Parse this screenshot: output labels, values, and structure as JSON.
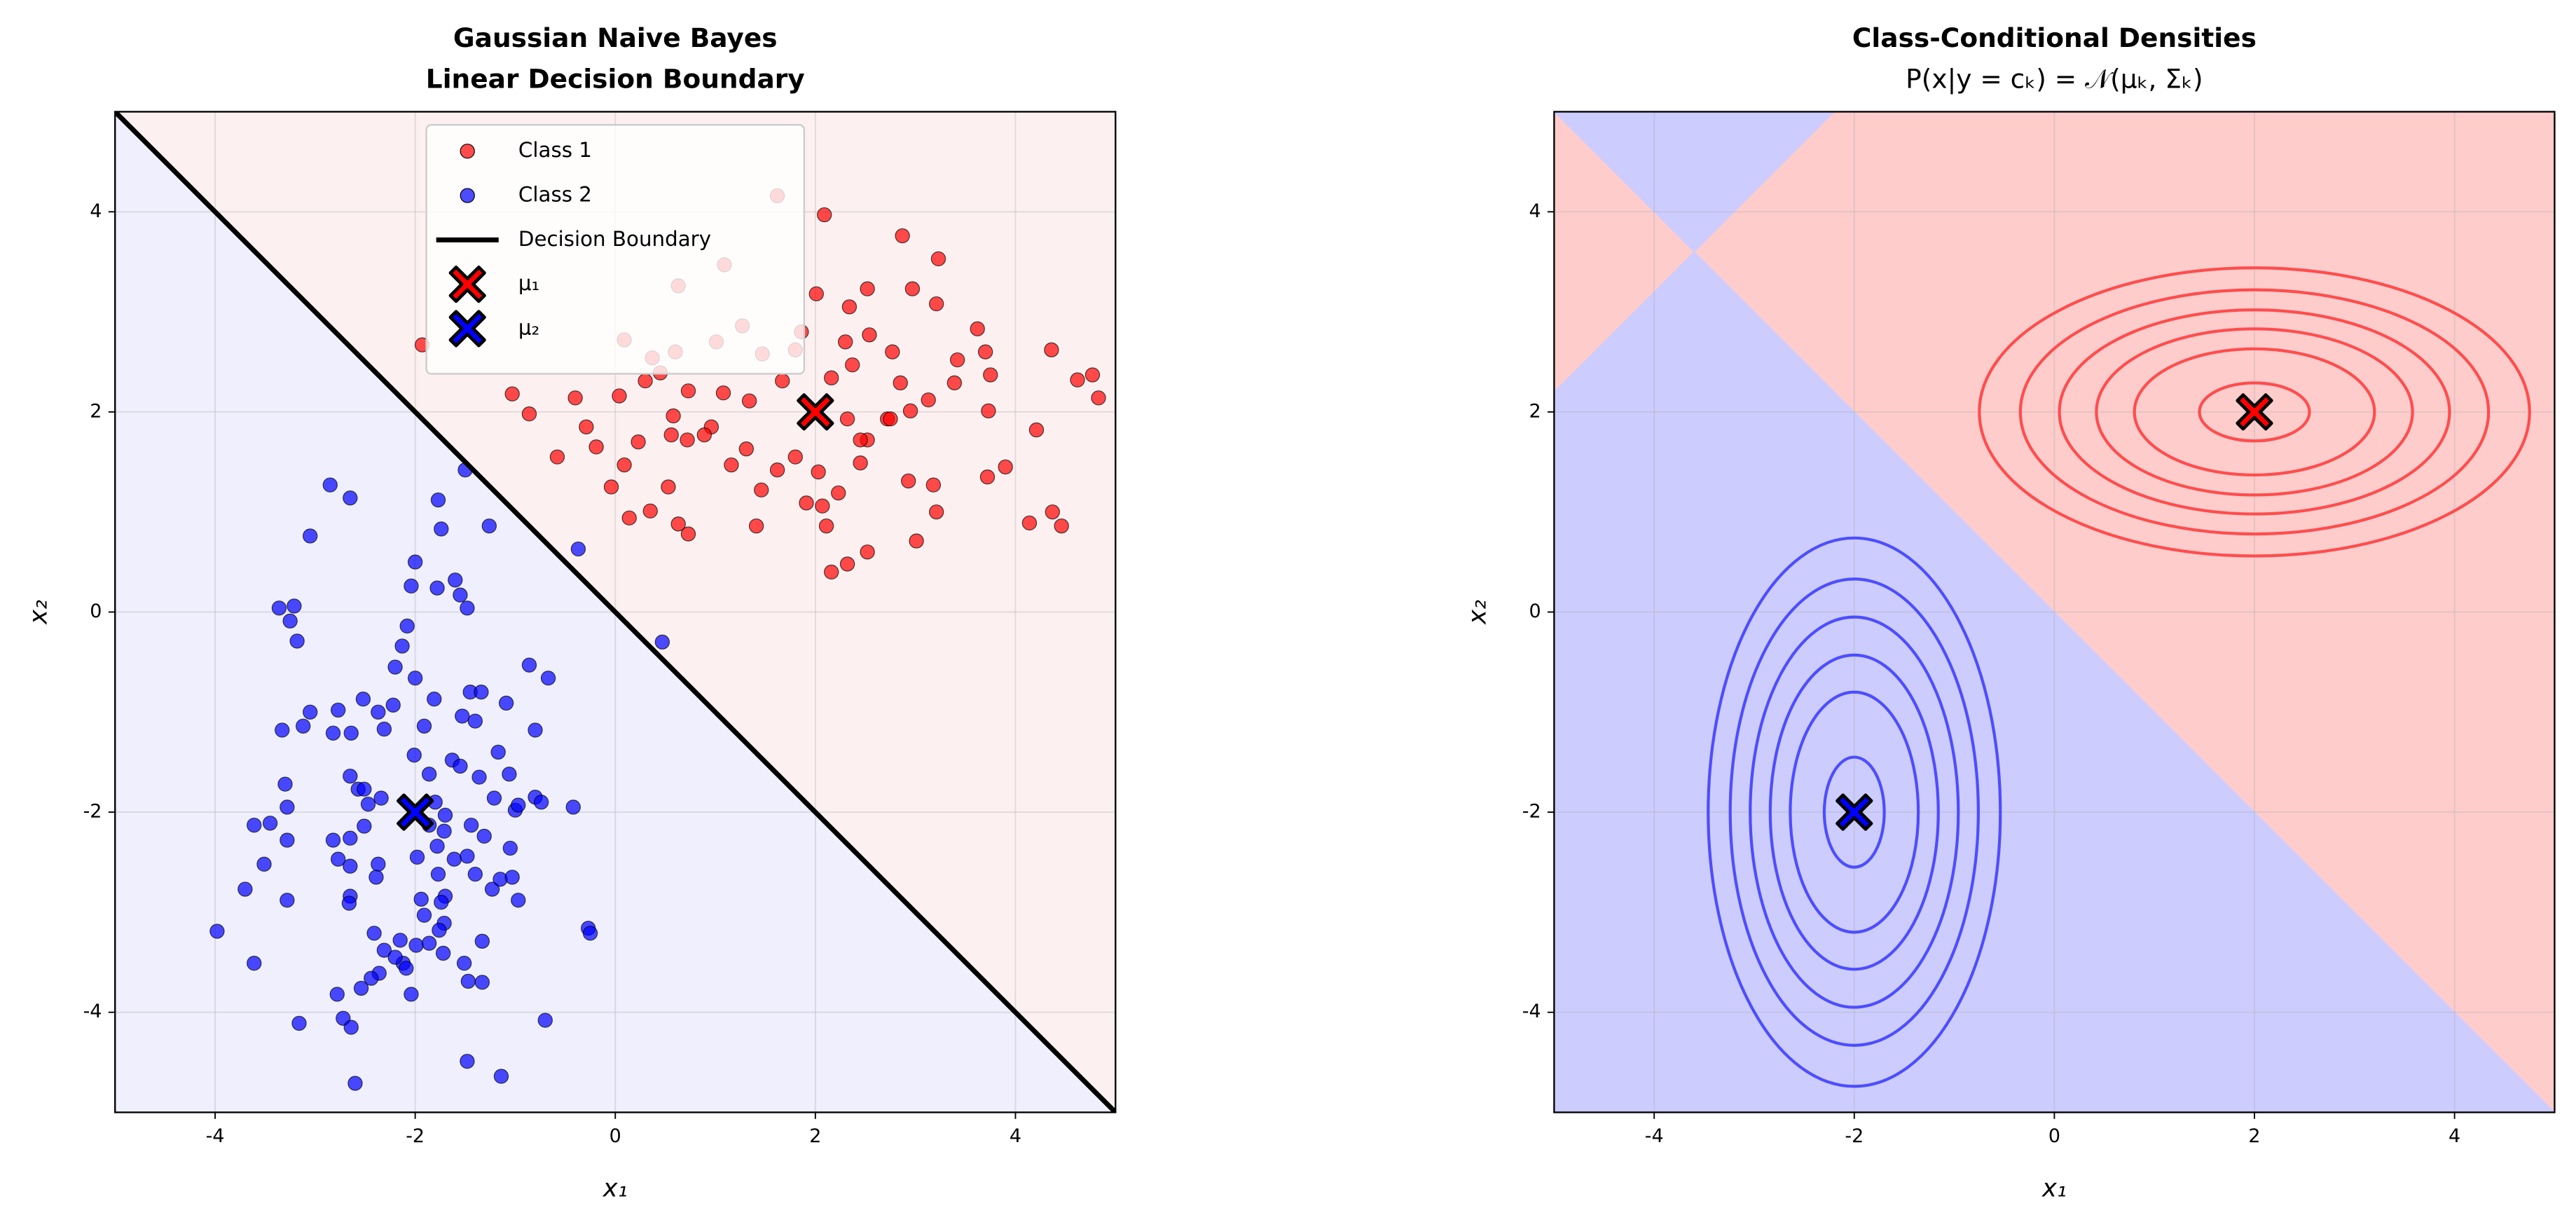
{
  "chart_data": [
    {
      "type": "scatter",
      "title": "Gaussian Naive Bayes",
      "subtitle": "Linear Decision Boundary",
      "xlabel": "x₁",
      "ylabel": "x₂",
      "xlim": [
        -5,
        5
      ],
      "ylim": [
        -5,
        5
      ],
      "xticks": [
        -4,
        -2,
        0,
        2,
        4
      ],
      "yticks": [
        -4,
        -2,
        0,
        2,
        4
      ],
      "grid": true,
      "legend": "upper center",
      "regions": [
        {
          "color": "#fdf0f0",
          "x": [
            -5,
            5,
            5
          ],
          "y": [
            5,
            5,
            -5
          ]
        },
        {
          "color": "#efeffd",
          "x": [
            -5,
            5,
            -5
          ],
          "y": [
            5,
            -5,
            -5
          ]
        }
      ],
      "series": [
        {
          "name": "Class 1",
          "color": "#ff0000",
          "x": [
            2.09,
            2.87,
            3.23,
            1.62,
            0.63,
            1.09,
            2.01,
            2.34,
            2.52,
            2.97,
            3.62,
            3.42,
            3.21,
            3.7,
            4.36,
            4.77,
            4.83,
            4.62,
            3.73,
            4.21,
            3.9,
            3.72,
            4.14,
            4.37,
            4.46,
            3.18,
            3.21,
            3.01,
            2.93,
            2.72,
            2.52,
            2.45,
            2.23,
            2.07,
            2.11,
            2.32,
            2.16,
            2.52,
            1.91,
            1.41,
            1.62,
            1.31,
            1.46,
            0.96,
            0.72,
            0.73,
            0.63,
            0.14,
            0.35,
            0.53,
            -0.04,
            0.09,
            -0.19,
            -0.29,
            -0.58,
            -0.86,
            -1.03,
            -0.4,
            0.04,
            0.3,
            0.45,
            0.73,
            1.08,
            1.34,
            1.67,
            1.47,
            1.8,
            2.16,
            2.37,
            2.54,
            2.77,
            2.85,
            2.95,
            3.13,
            3.39,
            3.75,
            0.09,
            0.6,
            1.01,
            1.27,
            1.86,
            2.3,
            2.75,
            2.45,
            2.32,
            0.89,
            1.16,
            1.8,
            2.03,
            0.56,
            0.23,
            0.58,
            0.37,
            -1.93
          ],
          "y": [
            3.97,
            3.76,
            3.53,
            4.16,
            3.26,
            3.47,
            3.18,
            3.05,
            3.23,
            3.23,
            2.83,
            2.52,
            3.08,
            2.6,
            2.62,
            2.37,
            2.14,
            2.32,
            2.01,
            1.82,
            1.45,
            1.35,
            0.89,
            1.0,
            0.86,
            1.27,
            1.0,
            0.71,
            1.31,
            1.93,
            1.72,
            1.49,
            1.19,
            1.06,
            0.86,
            0.48,
            0.4,
            0.6,
            1.09,
            0.86,
            1.42,
            1.63,
            1.22,
            1.85,
            1.72,
            0.78,
            0.88,
            0.94,
            1.01,
            1.25,
            1.25,
            1.47,
            1.65,
            1.85,
            1.55,
            1.98,
            2.18,
            2.14,
            2.16,
            2.31,
            2.39,
            2.21,
            2.19,
            2.11,
            2.31,
            2.58,
            2.62,
            2.34,
            2.47,
            2.77,
            2.6,
            2.29,
            2.01,
            2.12,
            2.29,
            2.37,
            2.72,
            2.6,
            2.7,
            2.86,
            2.8,
            2.7,
            1.93,
            1.72,
            1.93,
            1.77,
            1.47,
            1.55,
            1.4,
            1.77,
            1.7,
            1.96,
            2.54,
            2.67
          ]
        },
        {
          "name": "Class 2",
          "color": "#0000ff",
          "x": [
            -2.85,
            -2.65,
            -3.05,
            -1.77,
            -1.74,
            -1.5,
            -1.26,
            -2.0,
            -2.04,
            -1.6,
            -1.55,
            -1.48,
            -1.78,
            -3.36,
            -3.21,
            -3.25,
            -3.18,
            -2.08,
            -2.13,
            -2.2,
            -2.0,
            -0.86,
            -0.67,
            -1.45,
            -1.34,
            -1.81,
            -2.52,
            -2.37,
            -2.22,
            -3.05,
            -3.33,
            -3.12,
            -2.77,
            -1.53,
            -1.4,
            -1.09,
            -1.91,
            -0.8,
            -2.82,
            -2.64,
            -2.31,
            -2.01,
            -1.63,
            -1.55,
            -1.17,
            -1.06,
            -1.86,
            -2.65,
            -2.57,
            -3.3,
            -3.28,
            -3.61,
            -3.45,
            -2.47,
            -2.51,
            -2.34,
            -1.8,
            -1.7,
            -1.21,
            -1.0,
            -0.8,
            -0.74,
            -0.97,
            -0.42,
            -1.36,
            -1.44,
            -1.86,
            -1.71,
            -2.51,
            -2.65,
            -2.82,
            -3.28,
            -3.51,
            -2.77,
            -2.65,
            -2.37,
            -1.98,
            -1.78,
            -1.61,
            -1.48,
            -1.31,
            -1.05,
            -1.4,
            -1.77,
            -1.23,
            -1.15,
            -1.03,
            -0.97,
            -1.7,
            -1.74,
            -1.94,
            -2.39,
            -2.65,
            -2.66,
            -3.28,
            -3.7,
            -1.91,
            -1.71,
            -1.76,
            -2.41,
            -2.15,
            -1.99,
            -1.86,
            -1.72,
            -1.51,
            -1.33,
            -2.12,
            -2.31,
            -2.2,
            -2.36,
            -2.09,
            -2.44,
            -0.27,
            -0.25,
            -3.98,
            -3.61,
            -1.47,
            -1.33,
            -2.78,
            -2.54,
            -2.04,
            -0.7,
            -2.72,
            -2.64,
            -3.16,
            -1.48,
            -1.14,
            -2.6,
            -0.37,
            0.47
          ],
          "y": [
            1.27,
            1.14,
            0.76,
            1.12,
            0.83,
            1.42,
            0.86,
            0.5,
            0.26,
            0.32,
            0.17,
            0.04,
            0.24,
            0.04,
            0.06,
            -0.09,
            -0.29,
            -0.14,
            -0.34,
            -0.55,
            -0.66,
            -0.53,
            -0.66,
            -0.8,
            -0.8,
            -0.87,
            -0.87,
            -1.0,
            -0.93,
            -1.0,
            -1.18,
            -1.14,
            -0.98,
            -1.04,
            -1.09,
            -0.91,
            -1.14,
            -1.18,
            -1.21,
            -1.21,
            -1.17,
            -1.43,
            -1.48,
            -1.54,
            -1.4,
            -1.62,
            -1.62,
            -1.64,
            -1.77,
            -1.72,
            -1.95,
            -2.13,
            -2.11,
            -1.92,
            -1.77,
            -1.86,
            -1.9,
            -2.03,
            -1.86,
            -1.98,
            -1.85,
            -1.9,
            -1.93,
            -1.95,
            -1.65,
            -2.13,
            -2.13,
            -2.19,
            -2.14,
            -2.26,
            -2.28,
            -2.28,
            -2.52,
            -2.47,
            -2.54,
            -2.52,
            -2.45,
            -2.34,
            -2.47,
            -2.44,
            -2.24,
            -2.36,
            -2.62,
            -2.62,
            -2.77,
            -2.67,
            -2.65,
            -2.88,
            -2.84,
            -2.9,
            -2.87,
            -2.65,
            -2.84,
            -2.91,
            -2.88,
            -2.77,
            -3.03,
            -3.11,
            -3.18,
            -3.21,
            -3.28,
            -3.33,
            -3.31,
            -3.41,
            -3.51,
            -3.29,
            -3.51,
            -3.38,
            -3.45,
            -3.61,
            -3.56,
            -3.66,
            -3.16,
            -3.21,
            -3.19,
            -3.51,
            -3.69,
            -3.7,
            -3.82,
            -3.76,
            -3.82,
            -4.08,
            -4.06,
            -4.15,
            -4.11,
            -4.49,
            -4.64,
            -4.71,
            0.63,
            -0.3
          ]
        }
      ],
      "boundary": {
        "name": "Decision Boundary",
        "color": "#000000",
        "x": [
          -5,
          5
        ],
        "y": [
          5,
          -5
        ]
      },
      "means": [
        {
          "name": "μ₁",
          "color": "#ff0000",
          "x": 2,
          "y": 2
        },
        {
          "name": "μ₂",
          "color": "#0000ff",
          "x": -2,
          "y": -2
        }
      ]
    },
    {
      "type": "contour",
      "title": "Class-Conditional Densities",
      "subtitle": "P(x|y = cₖ) = 𝒩(μₖ, Σₖ)",
      "xlabel": "x₁",
      "ylabel": "x₂",
      "xlim": [
        -5,
        5
      ],
      "ylim": [
        -5,
        5
      ],
      "xticks": [
        -4,
        -2,
        0,
        2,
        4
      ],
      "yticks": [
        -4,
        -2,
        0,
        2,
        4
      ],
      "grid": true,
      "regions": [
        {
          "color": "#ffcccc",
          "x": [
            -5,
            5,
            5,
            -5
          ],
          "y": [
            5,
            5,
            -5,
            -5
          ]
        },
        {
          "color": "#ccccff",
          "x": [
            -5,
            -3.6,
            5,
            -5
          ],
          "y": [
            2.2,
            3.6,
            -5,
            -5
          ]
        },
        {
          "color": "#ccccff",
          "x": [
            -5,
            -2.2,
            -3.6
          ],
          "y": [
            5,
            5,
            3.6
          ]
        }
      ],
      "contours": [
        {
          "color": "#ff4d4d",
          "cx": 2,
          "cy": 2,
          "rx": [
            2.75,
            2.34,
            1.95,
            1.58,
            1.2,
            0.55
          ],
          "ry": [
            1.44,
            1.22,
            1.02,
            0.83,
            0.63,
            0.29
          ]
        },
        {
          "color": "#4d4dff",
          "cx": -2,
          "cy": -2,
          "rx": [
            1.46,
            1.24,
            1.04,
            0.84,
            0.64,
            0.3
          ],
          "ry": [
            2.74,
            2.33,
            1.95,
            1.57,
            1.2,
            0.55
          ]
        }
      ],
      "means": [
        {
          "color": "#ff0000",
          "x": 2,
          "y": 2
        },
        {
          "color": "#0000ff",
          "x": -2,
          "y": -2
        }
      ]
    }
  ]
}
